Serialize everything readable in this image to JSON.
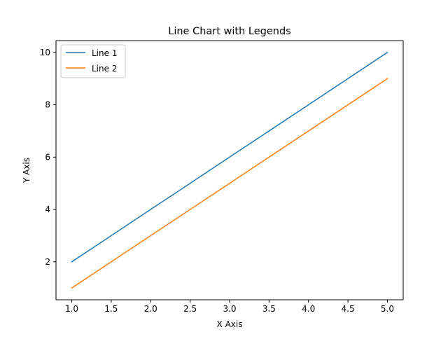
{
  "chart_data": {
    "type": "line",
    "title": "Line Chart with Legends",
    "xlabel": "X Axis",
    "ylabel": "Y Axis",
    "x": [
      1,
      2,
      3,
      4,
      5
    ],
    "series": [
      {
        "name": "Line 1",
        "values": [
          2,
          4,
          6,
          8,
          10
        ],
        "color": "#1f77b4"
      },
      {
        "name": "Line 2",
        "values": [
          1,
          3,
          5,
          7,
          9
        ],
        "color": "#ff7f0e"
      }
    ],
    "xlim": [
      0.8,
      5.2
    ],
    "ylim": [
      0.55,
      10.45
    ],
    "xticks": [
      1.0,
      1.5,
      2.0,
      2.5,
      3.0,
      3.5,
      4.0,
      4.5,
      5.0
    ],
    "xtick_labels": [
      "1.0",
      "1.5",
      "2.0",
      "2.5",
      "3.0",
      "3.5",
      "4.0",
      "4.5",
      "5.0"
    ],
    "yticks": [
      2,
      4,
      6,
      8,
      10
    ],
    "ytick_labels": [
      "2",
      "4",
      "6",
      "8",
      "10"
    ],
    "grid": false,
    "legend_position": "upper-left"
  }
}
